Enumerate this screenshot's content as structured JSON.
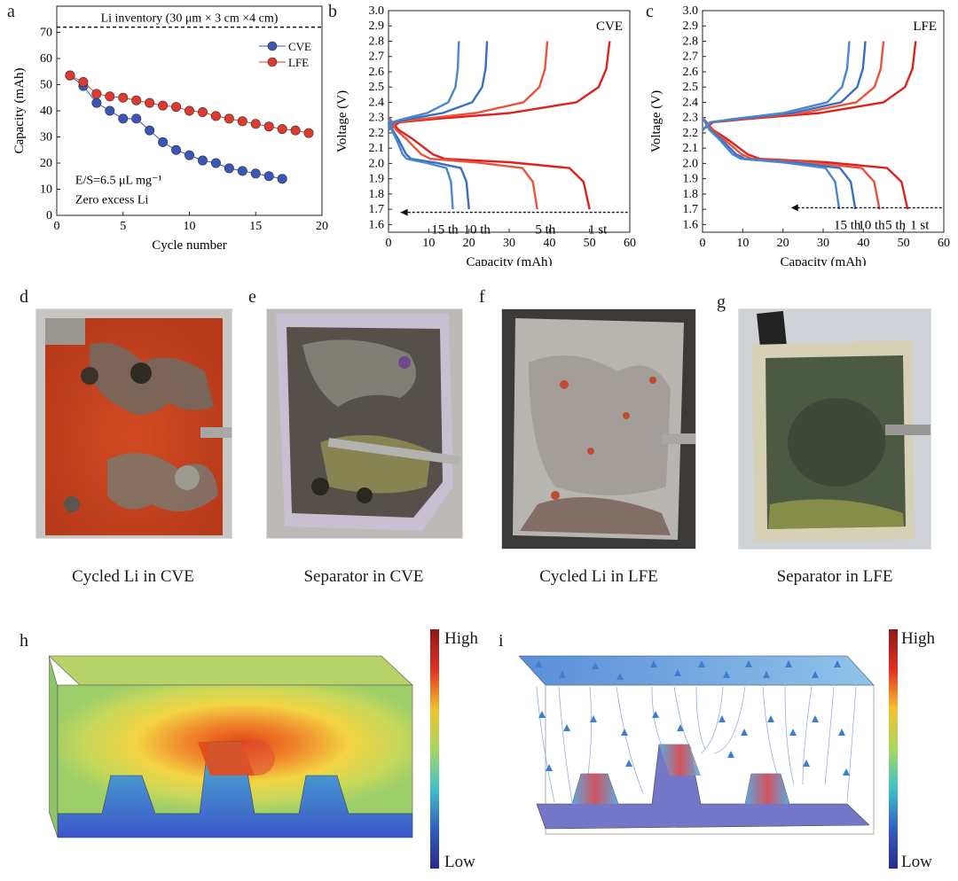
{
  "panel_labels": {
    "a": "a",
    "b": "b",
    "c": "c",
    "d": "d",
    "e": "e",
    "f": "f",
    "g": "g",
    "h": "h",
    "i": "i"
  },
  "chart_data": [
    {
      "id": "a",
      "type": "scatter",
      "xlabel": "Cycle number",
      "ylabel": "Capacity (mAh)",
      "xlim": [
        0,
        20
      ],
      "ylim": [
        0,
        80
      ],
      "xticks": [
        0,
        5,
        10,
        15,
        20
      ],
      "yticks": [
        0,
        10,
        20,
        30,
        40,
        50,
        60,
        70
      ],
      "reference_line": {
        "value": 72,
        "label": "Li inventory (30 μm × 3 cm ×4 cm)"
      },
      "annotations": [
        "E/S=6.5 μL mg⁻¹",
        "Zero excess Li"
      ],
      "legend": "top-right",
      "series": [
        {
          "name": "CVE",
          "color": "#3a56b8",
          "x": [
            1,
            2,
            3,
            4,
            5,
            6,
            7,
            8,
            9,
            10,
            11,
            12,
            13,
            14,
            15,
            16,
            17
          ],
          "values": [
            53.5,
            49.5,
            43,
            40,
            37,
            37,
            32.5,
            28,
            25,
            23,
            21,
            20,
            18,
            17,
            16,
            15,
            14
          ]
        },
        {
          "name": "LFE",
          "color": "#e03a2e",
          "x": [
            1,
            2,
            3,
            4,
            5,
            6,
            7,
            8,
            9,
            10,
            11,
            12,
            13,
            14,
            15,
            16,
            17,
            18,
            19
          ],
          "values": [
            53.5,
            51,
            46.5,
            45.5,
            45,
            44,
            43,
            42,
            41.5,
            40,
            39.5,
            38,
            37,
            36,
            35,
            34,
            33,
            32.5,
            31.5
          ]
        }
      ]
    },
    {
      "id": "b",
      "type": "line",
      "title": "CVE",
      "xlabel": "Capacity (mAh)",
      "ylabel": "Voltage (V)",
      "xlim": [
        0,
        60
      ],
      "ylim": [
        1.55,
        3.0
      ],
      "xticks": [
        0,
        10,
        20,
        30,
        40,
        50,
        60
      ],
      "yticks": [
        1.6,
        1.7,
        1.8,
        1.9,
        2.0,
        2.1,
        2.2,
        2.3,
        2.4,
        2.5,
        2.6,
        2.7,
        2.8,
        2.9,
        3.0
      ],
      "arrow_y": 1.68,
      "cycle_labels": [
        "15 th",
        "10 th",
        "5 th",
        "1 st"
      ],
      "cycle_label_x": [
        14,
        22,
        39,
        52
      ],
      "series": [
        {
          "name": "1 st",
          "color": "#e0201c",
          "discharge_end": 50,
          "charge_end": 55
        },
        {
          "name": "5 th",
          "color": "#e8533a",
          "discharge_end": 37,
          "charge_end": 39.5
        },
        {
          "name": "10 th",
          "color": "#3a6fc0",
          "discharge_end": 20,
          "charge_end": 24.5
        },
        {
          "name": "15 th",
          "color": "#4a86cc",
          "discharge_end": 16,
          "charge_end": 17.5
        }
      ]
    },
    {
      "id": "c",
      "type": "line",
      "title": "LFE",
      "xlabel": "Capacity (mAh)",
      "ylabel": "Voltage (V)",
      "xlim": [
        0,
        60
      ],
      "ylim": [
        1.55,
        3.0
      ],
      "xticks": [
        0,
        10,
        20,
        30,
        40,
        50,
        60
      ],
      "yticks": [
        1.6,
        1.7,
        1.8,
        1.9,
        2.0,
        2.1,
        2.2,
        2.3,
        2.4,
        2.5,
        2.6,
        2.7,
        2.8,
        2.9,
        3.0
      ],
      "arrow_y": 1.71,
      "cycle_labels": [
        "15 th",
        "10 th",
        "5 th",
        "1 st"
      ],
      "cycle_label_x": [
        36,
        42,
        48,
        54
      ],
      "series": [
        {
          "name": "1 st",
          "color": "#e0201c",
          "discharge_end": 51,
          "charge_end": 53
        },
        {
          "name": "5 th",
          "color": "#e8533a",
          "discharge_end": 44,
          "charge_end": 45
        },
        {
          "name": "10 th",
          "color": "#3a6fc0",
          "discharge_end": 38,
          "charge_end": 40.5
        },
        {
          "name": "15 th",
          "color": "#4a86cc",
          "discharge_end": 34,
          "charge_end": 36.5
        }
      ]
    }
  ],
  "photos": [
    {
      "id": "d",
      "caption": "Cycled Li in CVE"
    },
    {
      "id": "e",
      "caption": "Separator in CVE"
    },
    {
      "id": "f",
      "caption": "Cycled Li in LFE"
    },
    {
      "id": "g",
      "caption": "Separator in LFE"
    }
  ],
  "colorbars": {
    "high": "High",
    "low": "Low"
  }
}
